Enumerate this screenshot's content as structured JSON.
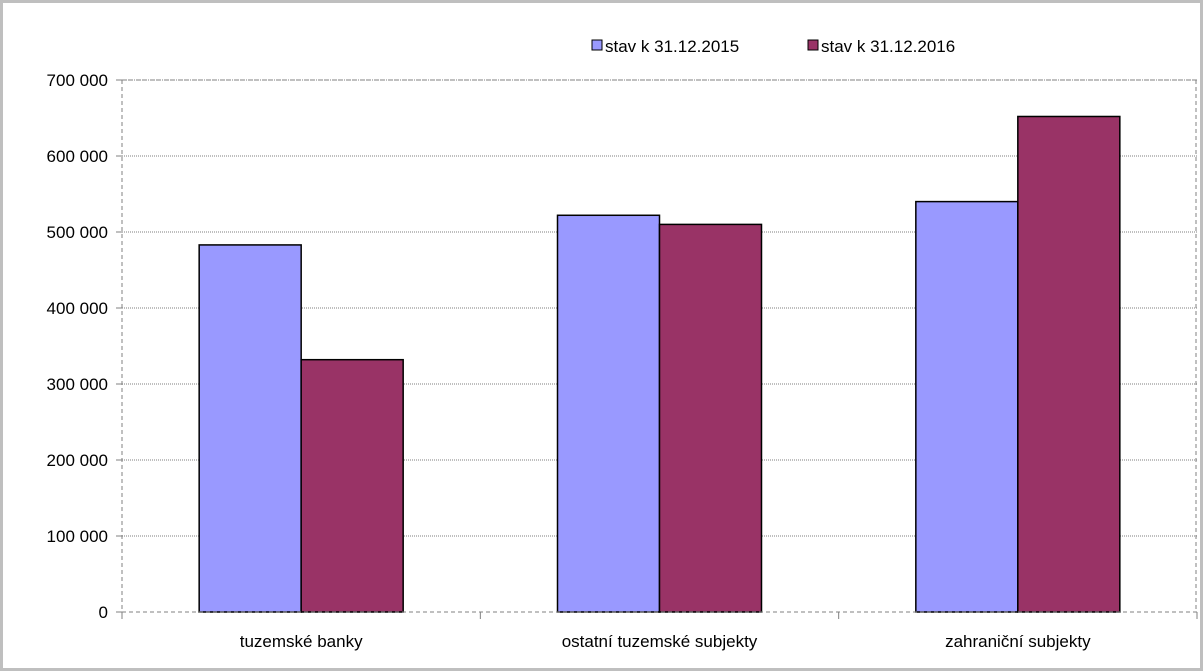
{
  "chart_data": {
    "type": "bar",
    "title": "",
    "xlabel": "",
    "ylabel": "",
    "categories": [
      "tuzemské banky",
      "ostatní tuzemské subjekty",
      "zahraniční subjekty"
    ],
    "series": [
      {
        "name": "stav k 31.12.2015",
        "color": "#9999ff",
        "values": [
          483000,
          522000,
          540000
        ]
      },
      {
        "name": "stav k 31.12.2016",
        "color": "#993366",
        "values": [
          332000,
          510000,
          652000
        ]
      }
    ],
    "ylim": [
      0,
      700000
    ],
    "yticks": [
      0,
      100000,
      200000,
      300000,
      400000,
      500000,
      600000,
      700000
    ],
    "ytick_labels": [
      "0",
      "100 000",
      "200 000",
      "300 000",
      "400 000",
      "500 000",
      "600 000",
      "700 000"
    ],
    "grid": true,
    "legend_position": "top"
  }
}
